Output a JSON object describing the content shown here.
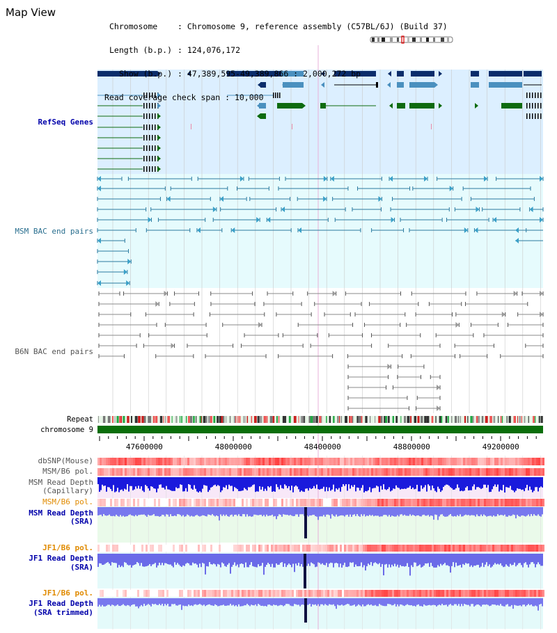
{
  "page": {
    "title": "Map View"
  },
  "info": {
    "chromosome_key": "Chromosome",
    "chromosome_value": "Chromosome 9, reference assembly (C57BL/6J) (Build 37)",
    "length_key": "Length (b.p.)",
    "length_value": "124,076,172",
    "show_key": "Show (b.p.)",
    "show_value": "47,389,595-49,389,866 : 2,000,272 bp",
    "coverage_key": "Read coverage check span",
    "coverage_value": "10,000"
  },
  "tracks": {
    "refseq_label": "RefSeq Genes",
    "msm_bac_label": "MSM BAC end pairs",
    "b6n_bac_label": "B6N BAC end pairs",
    "repeat_label": "Repeat",
    "chromosome_label": "chromosome 9",
    "dbsnp_label": "dbSNP(Mouse)",
    "msm_b6_pol_label": "MSM/B6 pol.",
    "msm_read_depth_cap_label_1": "MSM Read Depth",
    "msm_read_depth_cap_label_2": "(Capillary)",
    "msm_b6_pol_sra_label": "MSM/B6 pol.",
    "msm_read_depth_sra_label_1": "MSM Read Depth",
    "msm_read_depth_sra_label_2": "(SRA)",
    "jf1_b6_pol_label": "JF1/B6 pol.",
    "jf1_read_depth_sra_label_1": "JF1 Read Depth",
    "jf1_read_depth_sra_label_2": "(SRA)",
    "jf1_b6_pol_trim_label": "JF1/B6 pol.",
    "jf1_read_depth_trim_label_1": "JF1 Read Depth",
    "jf1_read_depth_trim_label_2": "(SRA trimmed)"
  },
  "axis": {
    "tick_labels": [
      "47600000",
      "48000000",
      "48400000",
      "48800000",
      "49200000"
    ],
    "tick_values": [
      47600000,
      48000000,
      48400000,
      48800000,
      49200000
    ],
    "range_start": 47389595,
    "range_end": 49389866
  },
  "colors": {
    "gene_dark": "#0b2d6b",
    "gene_mid": "#4a90bf",
    "gene_green": "#0e6b0e",
    "refseq_bg": "#dcefff",
    "msm_bg": "#e6fbfd",
    "msm_feature": "#2a7aa0",
    "b6n_feature": "#8a8a8a",
    "chromosome_bar": "#0a6e0a",
    "label_blue": "#0000aa",
    "label_orange": "#e08a00",
    "label_msm_bac": "#2a6f8f",
    "label_gray": "#555555",
    "depth_blue": "#1a1adc",
    "depth_sra": "#7878ee",
    "snp_red": "#ff3a3a"
  }
}
